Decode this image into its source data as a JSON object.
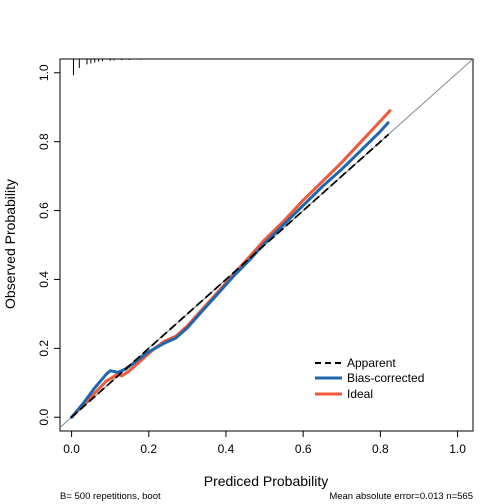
{
  "chart_data": {
    "type": "line",
    "xlabel": "Prediced Probability",
    "ylabel": "Observed Probability",
    "xlim": [
      -0.03,
      1.04
    ],
    "ylim": [
      -0.04,
      1.04
    ],
    "x_ticks": [
      "0.0",
      "0.2",
      "0.4",
      "0.6",
      "0.8",
      "1.0"
    ],
    "y_ticks": [
      "0.0",
      "0.2",
      "0.4",
      "0.6",
      "0.8",
      "1.0"
    ],
    "grid": false,
    "legend_position": "bottom-right",
    "legend": [
      "Apparent",
      "Bias-corrected",
      "Ideal"
    ],
    "series": [
      {
        "name": "Apparent",
        "style": "dashed",
        "color": "#000000",
        "x": [
          0.0,
          0.1,
          0.2,
          0.3,
          0.4,
          0.5,
          0.6,
          0.7,
          0.8,
          0.82
        ],
        "y": [
          0.0,
          0.1,
          0.2,
          0.3,
          0.4,
          0.5,
          0.6,
          0.7,
          0.8,
          0.82
        ]
      },
      {
        "name": "Bias-corrected",
        "style": "solid",
        "color": "#2166ac",
        "x": [
          0.0,
          0.03,
          0.06,
          0.09,
          0.1,
          0.12,
          0.14,
          0.17,
          0.2,
          0.24,
          0.27,
          0.3,
          0.34,
          0.38,
          0.42,
          0.46,
          0.5,
          0.55,
          0.6,
          0.65,
          0.7,
          0.75,
          0.8,
          0.82
        ],
        "y": [
          0.0,
          0.04,
          0.085,
          0.125,
          0.135,
          0.13,
          0.14,
          0.165,
          0.19,
          0.215,
          0.23,
          0.26,
          0.31,
          0.36,
          0.41,
          0.455,
          0.505,
          0.56,
          0.615,
          0.67,
          0.72,
          0.775,
          0.83,
          0.855
        ]
      },
      {
        "name": "Ideal",
        "style": "solid",
        "color": "#ef5a3c",
        "x": [
          0.0,
          0.03,
          0.06,
          0.09,
          0.12,
          0.13,
          0.15,
          0.18,
          0.21,
          0.24,
          0.27,
          0.3,
          0.34,
          0.38,
          0.42,
          0.46,
          0.5,
          0.55,
          0.6,
          0.65,
          0.7,
          0.75,
          0.8,
          0.825
        ],
        "y": [
          0.0,
          0.035,
          0.07,
          0.105,
          0.125,
          0.12,
          0.135,
          0.165,
          0.195,
          0.22,
          0.235,
          0.265,
          0.315,
          0.365,
          0.415,
          0.465,
          0.515,
          0.57,
          0.63,
          0.685,
          0.74,
          0.8,
          0.86,
          0.89
        ]
      }
    ],
    "ideal_line": {
      "x": [
        -0.03,
        1.04
      ],
      "y": [
        -0.03,
        1.04
      ]
    },
    "rug_top_x": [
      0.005,
      0.02,
      0.04,
      0.05,
      0.06,
      0.07,
      0.08,
      0.1,
      0.11,
      0.13,
      0.15,
      0.18
    ],
    "rug_top_heights": [
      0.9,
      0.5,
      0.3,
      0.25,
      0.2,
      0.15,
      0.12,
      0.1,
      0.08,
      0.06,
      0.05,
      0.04
    ],
    "footnote_left": "B= 500 repetitions, boot",
    "footnote_right": "Mean absolute error=0.013 n=565"
  }
}
